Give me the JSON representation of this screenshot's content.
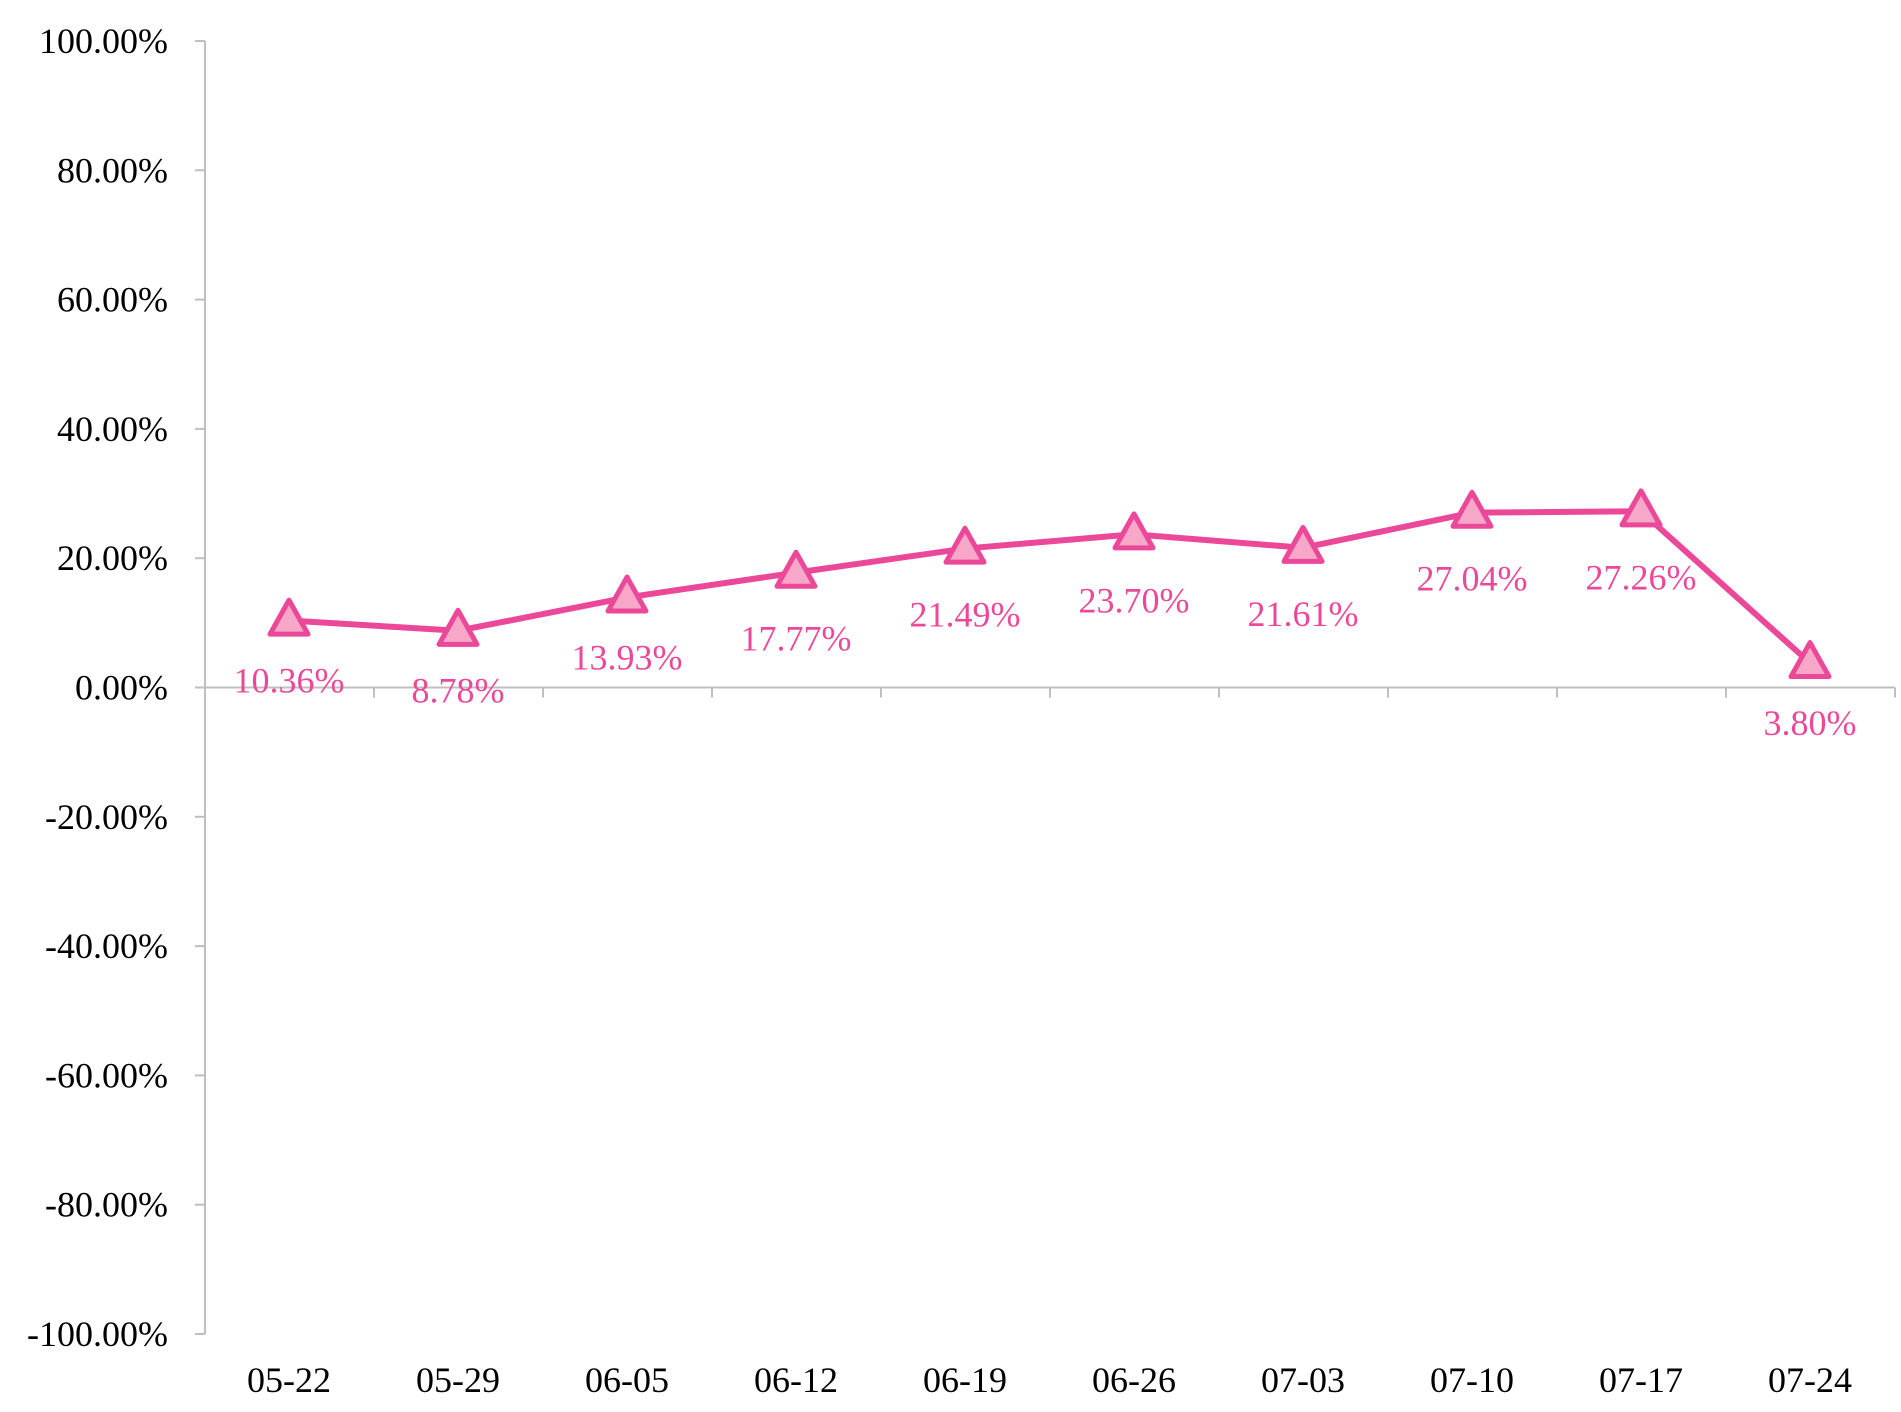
{
  "chart_data": {
    "type": "line",
    "title": "",
    "xlabel": "",
    "ylabel": "",
    "categories": [
      "05-22",
      "05-29",
      "06-05",
      "06-12",
      "06-19",
      "06-26",
      "07-03",
      "07-10",
      "07-17",
      "07-24"
    ],
    "series": [
      {
        "values": [
          10.36,
          8.78,
          13.93,
          17.77,
          21.49,
          23.7,
          21.61,
          27.04,
          27.26,
          3.8
        ],
        "labels": [
          "10.36%",
          "8.78%",
          "13.93%",
          "17.77%",
          "21.49%",
          "23.70%",
          "21.61%",
          "27.04%",
          "27.26%",
          "3.80%"
        ],
        "color": "#EC4899",
        "marker": "triangle",
        "marker_fill": "#F7A8C8"
      }
    ],
    "ylim": [
      -100,
      100
    ],
    "yticks": [
      100,
      80,
      60,
      40,
      20,
      0,
      -20,
      -40,
      -60,
      -80,
      -100
    ],
    "ytick_labels": [
      "100.00%",
      "80.00%",
      "60.00%",
      "40.00%",
      "20.00%",
      "0.00%",
      "-20.00%",
      "-40.00%",
      "-60.00%",
      "-80.00%",
      "-100.00%"
    ],
    "grid": false,
    "legend": "none",
    "axis_color": "#BFBFBF"
  }
}
